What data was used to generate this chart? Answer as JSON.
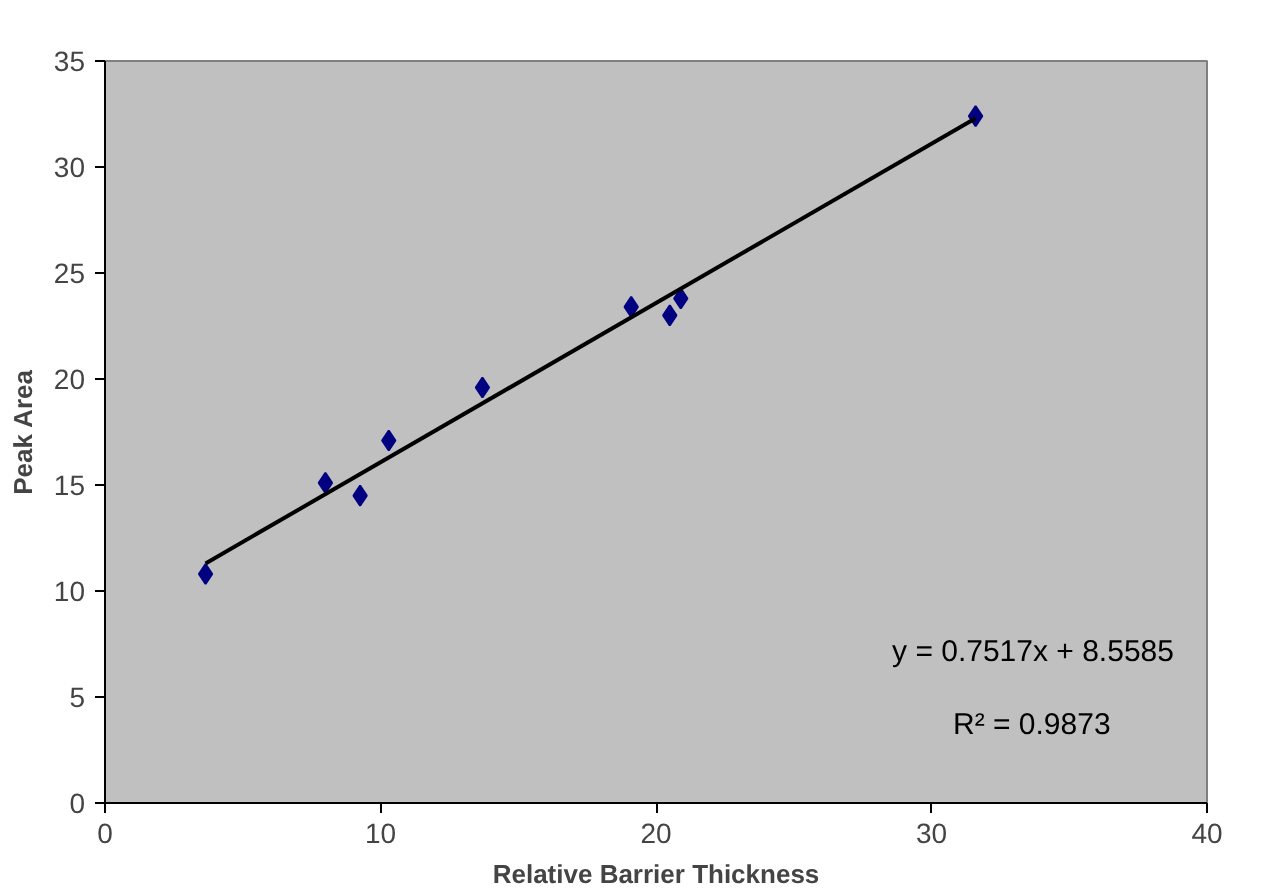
{
  "chart_data": {
    "type": "scatter",
    "xlabel": "Relative Barrier Thickness",
    "ylabel": "Peak Area",
    "xlim": [
      0,
      40
    ],
    "ylim": [
      0,
      35
    ],
    "xticks": [
      0,
      10,
      20,
      30,
      40
    ],
    "yticks": [
      0,
      5,
      10,
      15,
      20,
      25,
      30,
      35
    ],
    "grid": false,
    "marker": "diamond",
    "series": [
      {
        "color": "#000080",
        "x": [
          3.65,
          8.0,
          9.26,
          10.3,
          13.7,
          19.1,
          20.5,
          20.9,
          31.6
        ],
        "values": [
          10.8,
          15.1,
          14.5,
          17.1,
          19.6,
          23.4,
          23.0,
          23.8,
          32.4
        ]
      },
      {
        "type": "line",
        "color": "#000000",
        "x": [
          3.65,
          31.6
        ],
        "values": [
          11.3,
          32.3
        ],
        "line_style": "solid",
        "marker": "none"
      }
    ],
    "annotations": [
      "y = 0.7517x + 8.5585",
      "R² = 0.9873"
    ]
  }
}
